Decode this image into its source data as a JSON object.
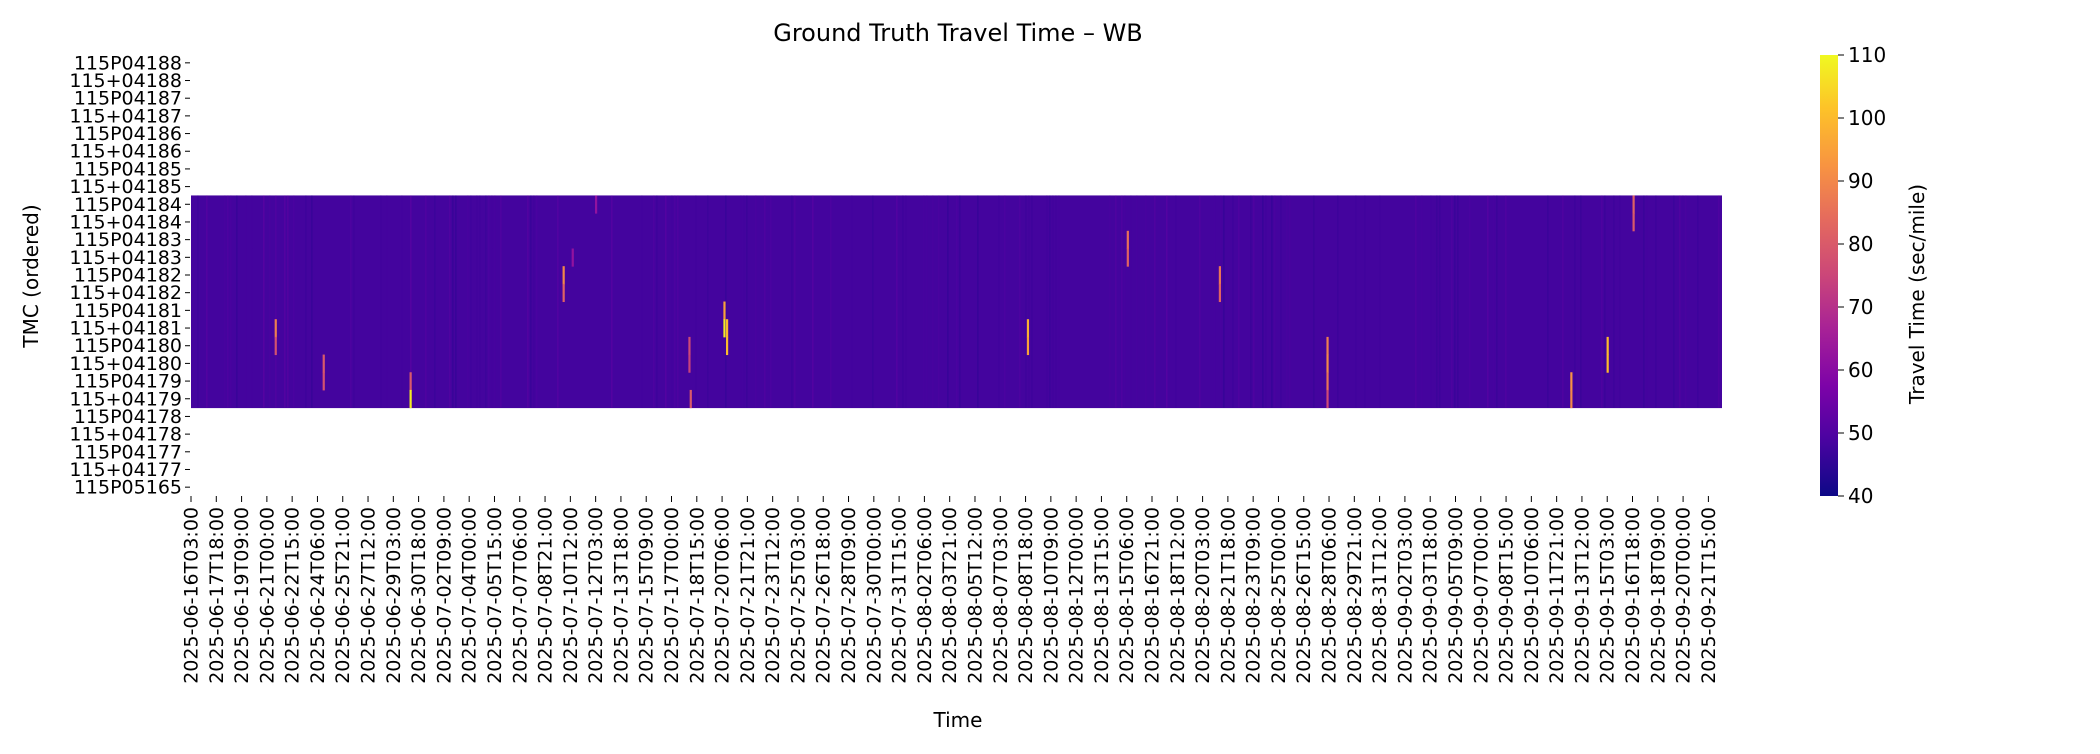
{
  "chart_data": {
    "type": "heatmap",
    "title": "Ground Truth Travel Time – WB",
    "xlabel": "Time",
    "ylabel": "TMC (ordered)",
    "colorbar": {
      "label": "Travel Time (sec/mile)",
      "colormap": "plasma",
      "range": [
        40,
        110
      ],
      "ticks": [
        40,
        50,
        60,
        70,
        80,
        90,
        100,
        110
      ]
    },
    "rows": [
      "115P04188",
      "115+04188",
      "115P04187",
      "115+04187",
      "115P04186",
      "115+04186",
      "115P04185",
      "115+04185",
      "115P04184",
      "115+04184",
      "115P04183",
      "115+04183",
      "115P04182",
      "115+04182",
      "115P04181",
      "115+04181",
      "115P04180",
      "115+04180",
      "115P04179",
      "115+04179",
      "115P04178",
      "115+04178",
      "115P04177",
      "115+04177",
      "115P05165"
    ],
    "rows_with_data": [
      "115P04184",
      "115+04184",
      "115P04183",
      "115+04183",
      "115P04182",
      "115+04182",
      "115P04181",
      "115+04181",
      "115P04180",
      "115+04180",
      "115P04179",
      "115+04179"
    ],
    "baseline_value": 48,
    "x_tick_labels": [
      "2025-06-16T03:00",
      "2025-06-17T18:00",
      "2025-06-19T09:00",
      "2025-06-21T00:00",
      "2025-06-22T15:00",
      "2025-06-24T06:00",
      "2025-06-25T21:00",
      "2025-06-27T12:00",
      "2025-06-29T03:00",
      "2025-06-30T18:00",
      "2025-07-02T09:00",
      "2025-07-04T00:00",
      "2025-07-05T15:00",
      "2025-07-07T06:00",
      "2025-07-08T21:00",
      "2025-07-10T12:00",
      "2025-07-12T03:00",
      "2025-07-13T18:00",
      "2025-07-15T09:00",
      "2025-07-17T00:00",
      "2025-07-18T15:00",
      "2025-07-20T06:00",
      "2025-07-21T21:00",
      "2025-07-23T12:00",
      "2025-07-25T03:00",
      "2025-07-26T18:00",
      "2025-07-28T09:00",
      "2025-07-30T00:00",
      "2025-07-31T15:00",
      "2025-08-02T06:00",
      "2025-08-03T21:00",
      "2025-08-05T12:00",
      "2025-08-07T03:00",
      "2025-08-08T18:00",
      "2025-08-10T09:00",
      "2025-08-12T00:00",
      "2025-08-13T15:00",
      "2025-08-15T06:00",
      "2025-08-16T21:00",
      "2025-08-18T12:00",
      "2025-08-20T03:00",
      "2025-08-21T18:00",
      "2025-08-23T09:00",
      "2025-08-25T00:00",
      "2025-08-26T15:00",
      "2025-08-28T06:00",
      "2025-08-29T21:00",
      "2025-08-31T12:00",
      "2025-09-02T03:00",
      "2025-09-03T18:00",
      "2025-09-05T09:00",
      "2025-09-07T00:00",
      "2025-09-08T15:00",
      "2025-09-10T06:00",
      "2025-09-11T21:00",
      "2025-09-13T12:00",
      "2025-09-15T03:00",
      "2025-09-16T18:00",
      "2025-09-18T09:00",
      "2025-09-20T00:00",
      "2025-09-21T15:00"
    ],
    "x_range": [
      "2025-06-16T03:00",
      "2025-09-22T12:00"
    ],
    "spikes": [
      {
        "row": "115P04184",
        "time": "2025-07-12T02:00",
        "value": 62
      },
      {
        "row": "115P04184",
        "time": "2025-09-16T18:00",
        "value": 82
      },
      {
        "row": "115+04184",
        "time": "2025-09-16T18:00",
        "value": 80
      },
      {
        "row": "115P04183",
        "time": "2025-08-15T06:00",
        "value": 85
      },
      {
        "row": "115+04183",
        "time": "2025-08-15T06:00",
        "value": 82
      },
      {
        "row": "115+04183",
        "time": "2025-07-10T14:00",
        "value": 62
      },
      {
        "row": "115P04182",
        "time": "2025-07-10T00:00",
        "value": 90
      },
      {
        "row": "115+04182",
        "time": "2025-07-10T00:00",
        "value": 82
      },
      {
        "row": "115P04182",
        "time": "2025-08-21T04:00",
        "value": 86
      },
      {
        "row": "115+04182",
        "time": "2025-08-21T04:00",
        "value": 82
      },
      {
        "row": "115P04181",
        "time": "2025-07-20T08:00",
        "value": 95
      },
      {
        "row": "115+04181",
        "time": "2025-06-21T12:00",
        "value": 88
      },
      {
        "row": "115+04181",
        "time": "2025-07-20T08:00",
        "value": 108
      },
      {
        "row": "115+04181",
        "time": "2025-07-20T12:00",
        "value": 100
      },
      {
        "row": "115+04181",
        "time": "2025-08-08T20:00",
        "value": 98
      },
      {
        "row": "115P04180",
        "time": "2025-06-21T12:00",
        "value": 78
      },
      {
        "row": "115P04180",
        "time": "2025-07-20T12:00",
        "value": 100
      },
      {
        "row": "115P04180",
        "time": "2025-08-08T20:00",
        "value": 95
      },
      {
        "row": "115P04180",
        "time": "2025-07-18T02:00",
        "value": 76
      },
      {
        "row": "115P04180",
        "time": "2025-08-28T02:00",
        "value": 88
      },
      {
        "row": "115P04180",
        "time": "2025-09-15T02:00",
        "value": 100
      },
      {
        "row": "115+04180",
        "time": "2025-06-24T14:00",
        "value": 80
      },
      {
        "row": "115+04180",
        "time": "2025-08-28T02:00",
        "value": 90
      },
      {
        "row": "115+04180",
        "time": "2025-09-15T02:00",
        "value": 100
      },
      {
        "row": "115+04180",
        "time": "2025-07-18T02:00",
        "value": 74
      },
      {
        "row": "115P04179",
        "time": "2025-06-24T14:00",
        "value": 78
      },
      {
        "row": "115P04179",
        "time": "2025-06-30T04:00",
        "value": 80
      },
      {
        "row": "115P04179",
        "time": "2025-09-12T18:00",
        "value": 92
      },
      {
        "row": "115P04179",
        "time": "2025-08-28T02:00",
        "value": 86
      },
      {
        "row": "115+04179",
        "time": "2025-06-30T04:00",
        "value": 108
      },
      {
        "row": "115+04179",
        "time": "2025-09-12T18:00",
        "value": 90
      },
      {
        "row": "115+04179",
        "time": "2025-07-18T04:00",
        "value": 80
      },
      {
        "row": "115+04179",
        "time": "2025-08-28T02:00",
        "value": 76
      }
    ]
  }
}
